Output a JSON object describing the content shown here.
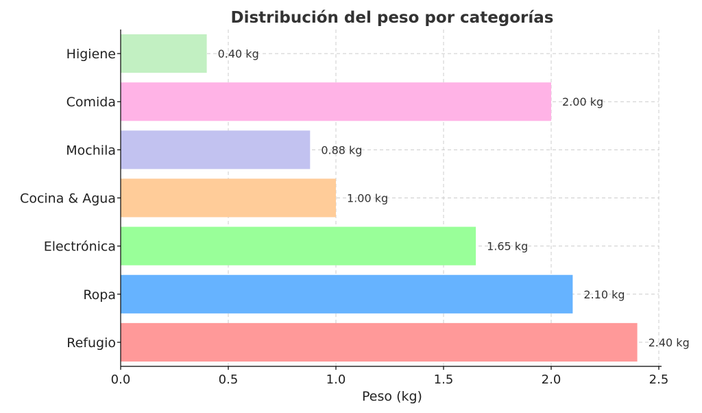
{
  "chart_data": {
    "type": "bar",
    "orientation": "horizontal",
    "title": "Distribución del peso por categorías",
    "xlabel": "Peso (kg)",
    "ylabel": "",
    "xlim": [
      0,
      2.5
    ],
    "xticks": [
      "0.0",
      "0.5",
      "1.0",
      "1.5",
      "2.0",
      "2.5"
    ],
    "grid": true,
    "categories": [
      "Higiene",
      "Comida",
      "Mochila",
      "Cocina & Agua",
      "Electrónica",
      "Ropa",
      "Refugio"
    ],
    "values": [
      0.4,
      2.0,
      0.88,
      1.0,
      1.65,
      2.1,
      2.4
    ],
    "value_labels": [
      "0.40 kg",
      "2.00 kg",
      "0.88 kg",
      "1.00 kg",
      "1.65 kg",
      "2.10 kg",
      "2.40 kg"
    ],
    "colors": [
      "#c2f0c2",
      "#ffb3e6",
      "#c2c2f0",
      "#ffcc99",
      "#99ff99",
      "#66b3ff",
      "#ff9999"
    ]
  }
}
